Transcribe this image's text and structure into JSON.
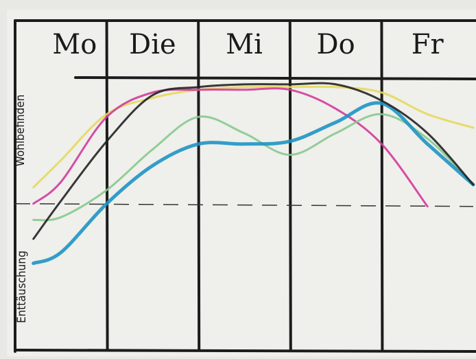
{
  "chart_data": {
    "type": "line",
    "categories": [
      "Mo",
      "Die",
      "Mi",
      "Do",
      "Fr"
    ],
    "y_label_top": "Wohlbefinden",
    "y_label_bottom": "Enttäuschung",
    "x": [
      0.2,
      0.5,
      1,
      1.5,
      2,
      2.5,
      3,
      3.5,
      4,
      4.5,
      5
    ],
    "xlim": [
      0,
      5
    ],
    "ylim": [
      0,
      100
    ],
    "reference_line": 54,
    "series": [
      {
        "color": "#e4d95a",
        "values": [
          60,
          70,
          87,
          93,
          96,
          97,
          97,
          97,
          95,
          87,
          82
        ]
      },
      {
        "color": "#d23a9c",
        "values": [
          54,
          62,
          86,
          95,
          96,
          96,
          96,
          89,
          76,
          53,
          null
        ]
      },
      {
        "color": "#86c98e",
        "values": [
          48,
          49,
          59,
          74,
          86,
          80,
          72,
          80,
          87,
          78,
          61
        ]
      },
      {
        "color": "#1e93c4",
        "values": [
          32,
          36,
          54,
          68,
          76,
          76,
          77,
          84,
          91,
          76,
          61
        ]
      },
      {
        "color": "#222222",
        "values": [
          41,
          55,
          77,
          94,
          97,
          98,
          98,
          98,
          92,
          80,
          61
        ]
      }
    ]
  }
}
